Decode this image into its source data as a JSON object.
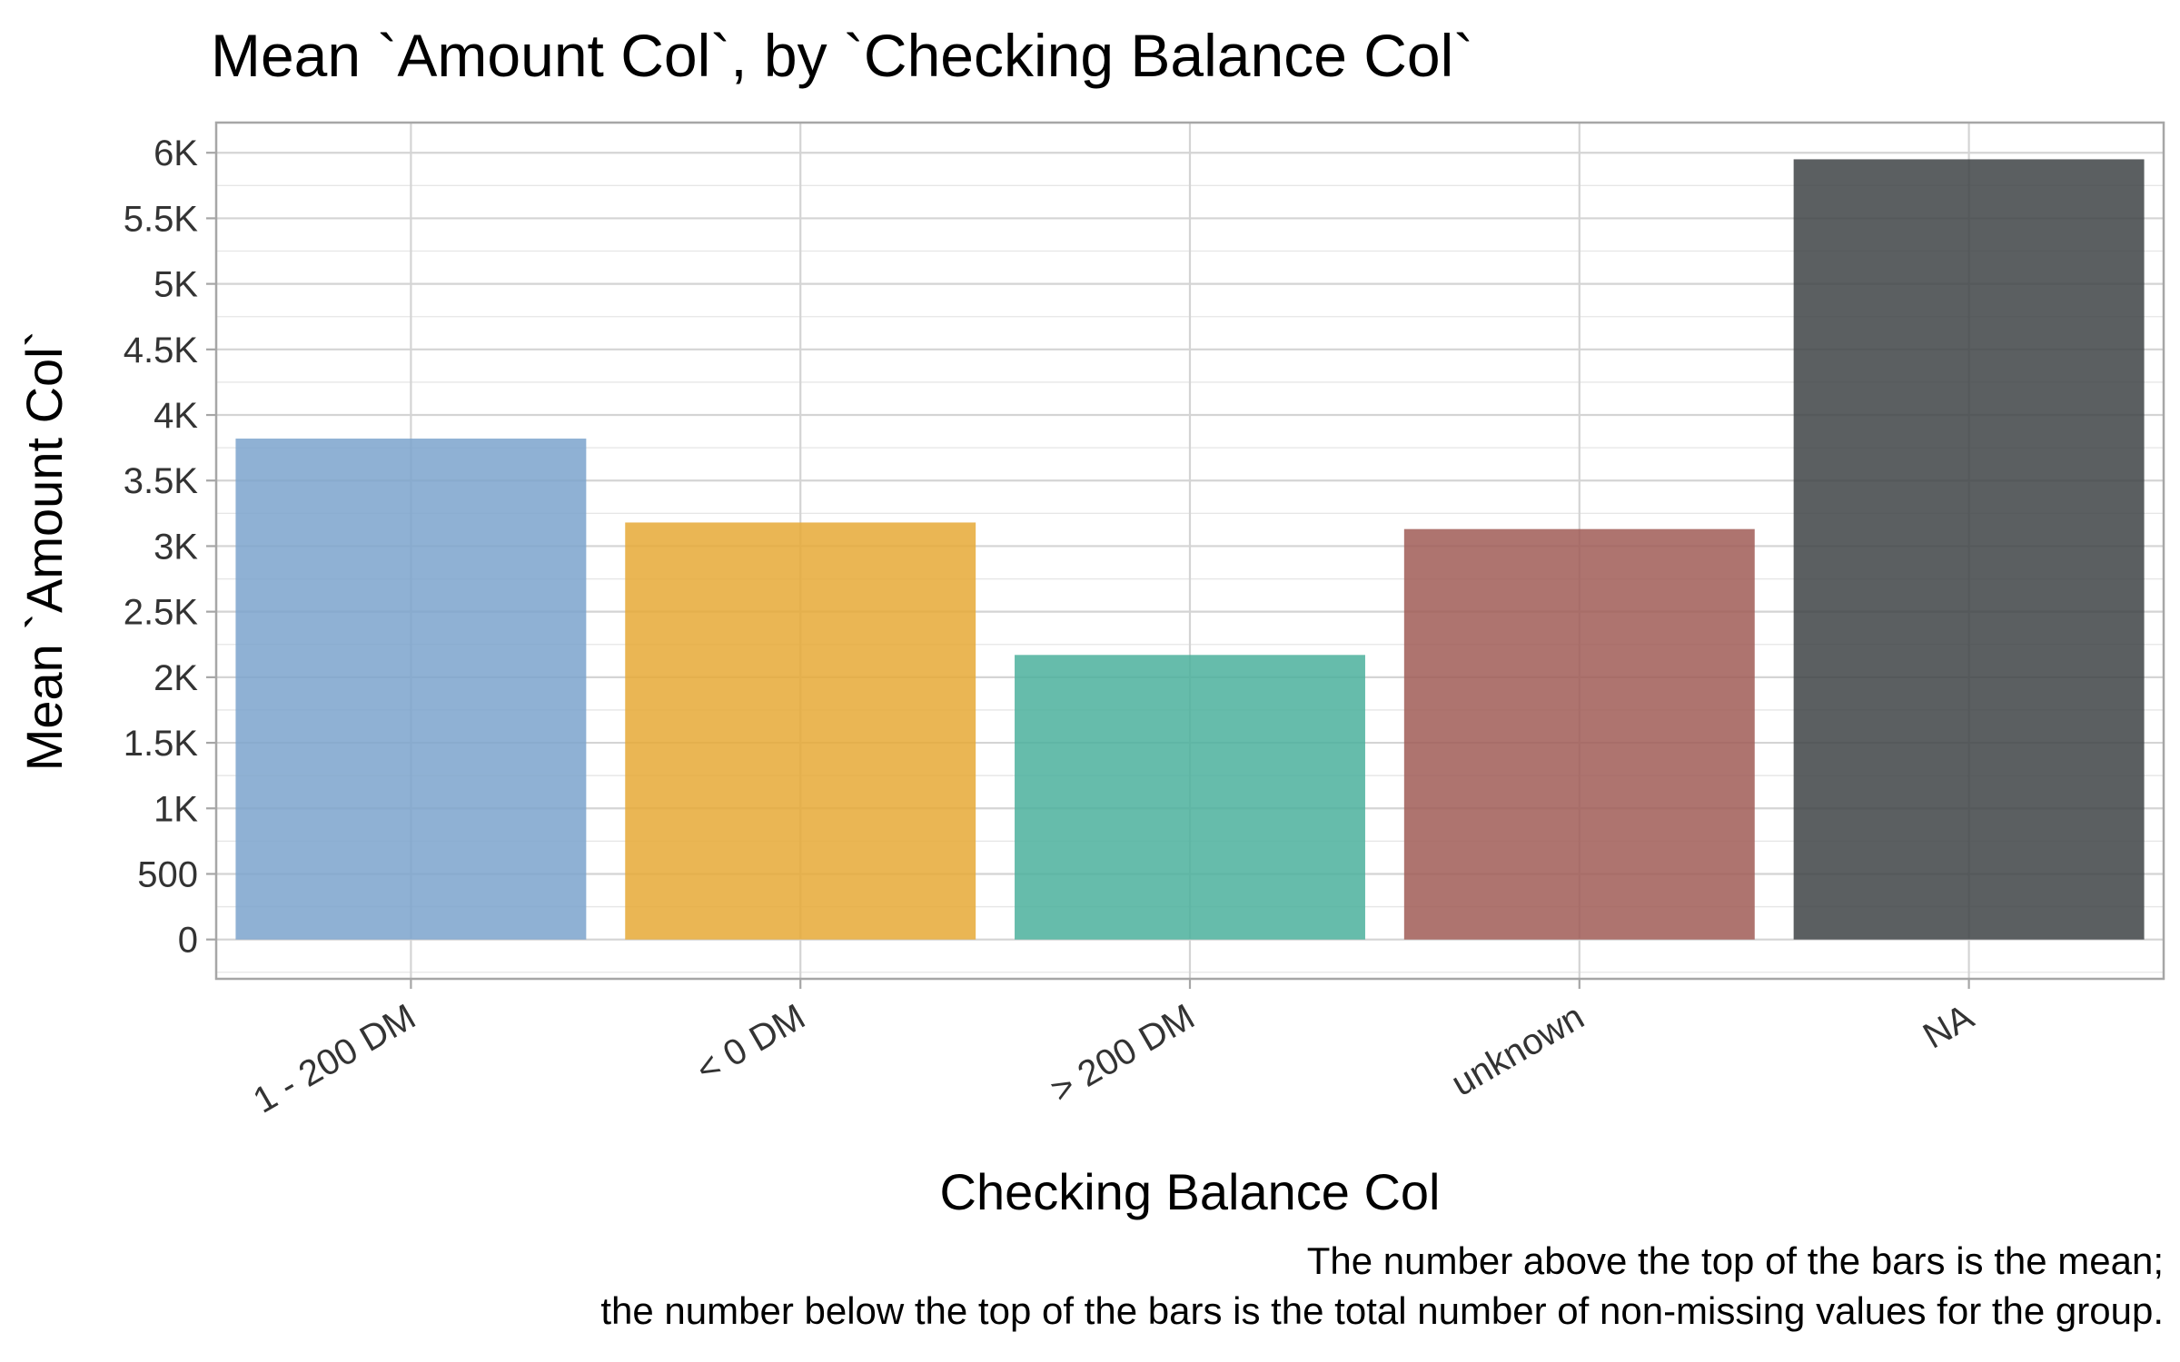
{
  "chart_data": {
    "type": "bar",
    "title": "Mean `Amount Col`, by `Checking Balance Col`",
    "xlabel": "Checking Balance Col",
    "ylabel": "Mean `Amount Col`",
    "categories": [
      "1 - 200 DM",
      "< 0 DM",
      "> 200 DM",
      "unknown",
      "NA"
    ],
    "values": [
      3820,
      3180,
      2170,
      3130,
      5950
    ],
    "colors": [
      "#7ba3cc",
      "#e6a936",
      "#4bb09c",
      "#a05c56",
      "#3e4345"
    ],
    "bar_opacity": 0.85,
    "ylim": [
      -300,
      6230
    ],
    "yticks": [
      0,
      500,
      1000,
      1500,
      2000,
      2500,
      3000,
      3500,
      4000,
      4500,
      5000,
      5500,
      6000
    ],
    "ytick_labels": [
      "0",
      "500",
      "1K",
      "1.5K",
      "2K",
      "2.5K",
      "3K",
      "3.5K",
      "4K",
      "4.5K",
      "5K",
      "5.5K",
      "6K"
    ],
    "grid": true,
    "legend": "none",
    "caption": [
      "The number above the top of the bars is the mean;",
      "the number below the top of the bars is the total number of non-missing values for the group."
    ]
  }
}
